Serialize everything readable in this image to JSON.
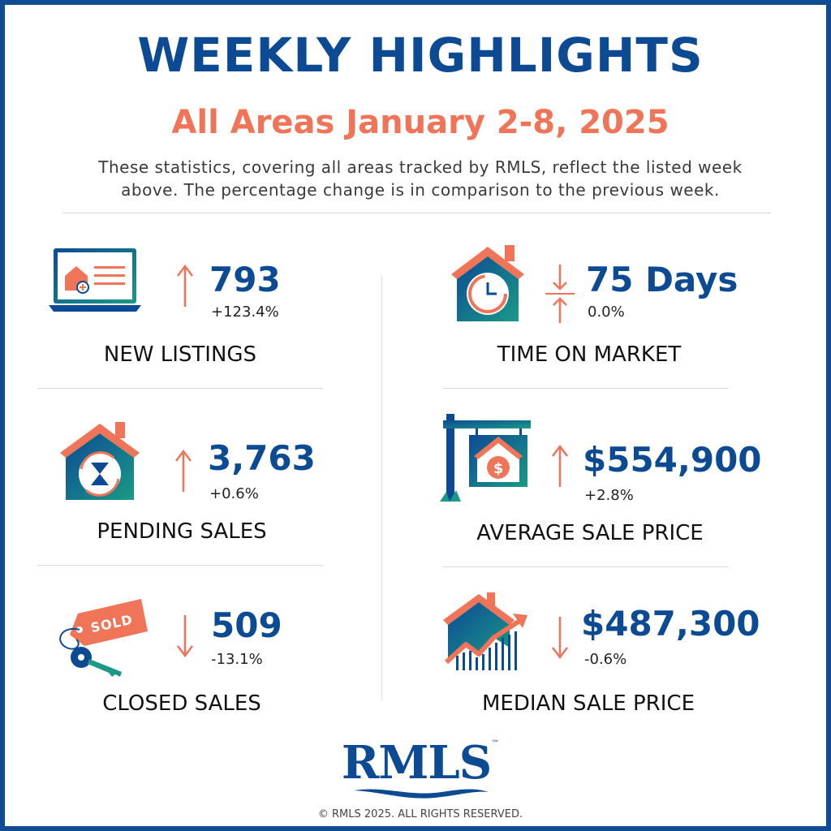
{
  "header": {
    "title": "WEEKLY HIGHLIGHTS",
    "subtitle": "All Areas January 2-8, 2025",
    "intro_line1": "These statistics, covering all areas tracked by RMLS, reflect the listed week",
    "intro_line2": "above. The percentage change is in comparison to the previous week."
  },
  "colors": {
    "brand_blue": "#0d4a94",
    "accent_coral": "#ef7458",
    "teal": "#1a9a86"
  },
  "stats": {
    "new_listings": {
      "value": "793",
      "change": "+123.4%",
      "label": "NEW LISTINGS",
      "direction": "up",
      "icon": "laptop-listing-icon"
    },
    "time_on_market": {
      "value": "75 Days",
      "change": "0.0%",
      "label": "TIME ON MARKET",
      "direction": "flat",
      "icon": "house-clock-icon"
    },
    "pending_sales": {
      "value": "3,763",
      "change": "+0.6%",
      "label": "PENDING SALES",
      "direction": "up",
      "icon": "house-hourglass-icon"
    },
    "average_price": {
      "value": "$554,900",
      "change": "+2.8%",
      "label": "AVERAGE SALE PRICE",
      "direction": "up",
      "icon": "for-sale-sign-icon"
    },
    "closed_sales": {
      "value": "509",
      "change": "-13.1%",
      "label": "CLOSED SALES",
      "direction": "down",
      "icon": "sold-tag-key-icon",
      "tag_text": "SOLD"
    },
    "median_price": {
      "value": "$487,300",
      "change": "-0.6%",
      "label": "MEDIAN SALE PRICE",
      "direction": "down",
      "icon": "house-growth-chart-icon"
    }
  },
  "footer": {
    "logo_text": "RMLS",
    "logo_tm": "™",
    "copyright": "© RMLS 2025. ALL RIGHTS RESERVED."
  }
}
